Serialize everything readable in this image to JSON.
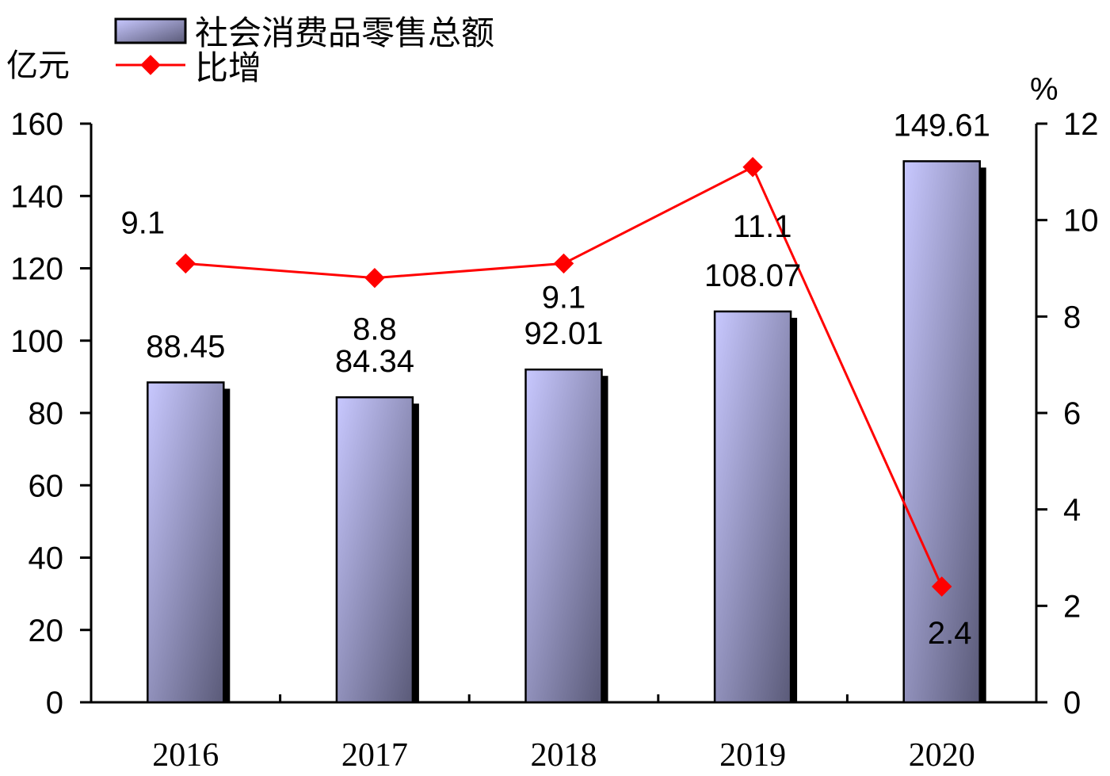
{
  "chart_data": {
    "type": "bar",
    "categories": [
      "2016",
      "2017",
      "2018",
      "2019",
      "2020"
    ],
    "series": [
      {
        "name": "社会消费品零售总额",
        "type": "bar",
        "axis": "left",
        "values": [
          88.45,
          84.34,
          92.01,
          108.07,
          149.61
        ],
        "labels": [
          "88.45",
          "84.34",
          "92.01",
          "108.07",
          "149.61"
        ]
      },
      {
        "name": "比增",
        "type": "line",
        "axis": "right",
        "values": [
          9.1,
          8.8,
          9.1,
          11.1,
          2.4
        ],
        "labels": [
          "9.1",
          "8.8",
          "9.1",
          "11.1",
          "2.4"
        ]
      }
    ],
    "y_left": {
      "unit": "亿元",
      "min": 0,
      "max": 160,
      "ticks": [
        "0",
        "20",
        "40",
        "60",
        "80",
        "100",
        "120",
        "140",
        "160"
      ]
    },
    "y_right": {
      "unit": "%",
      "min": 0,
      "max": 12,
      "ticks": [
        "0",
        "2",
        "4",
        "6",
        "8",
        "10",
        "12"
      ]
    },
    "legend": "top-left",
    "grid": false,
    "colors": {
      "bar_light": "#c8c8ff",
      "bar_dark": "#5a5a78",
      "bar_shadow": "#000000",
      "line": "#ff0000",
      "marker": "#ff0000",
      "axis": "#000000"
    }
  }
}
